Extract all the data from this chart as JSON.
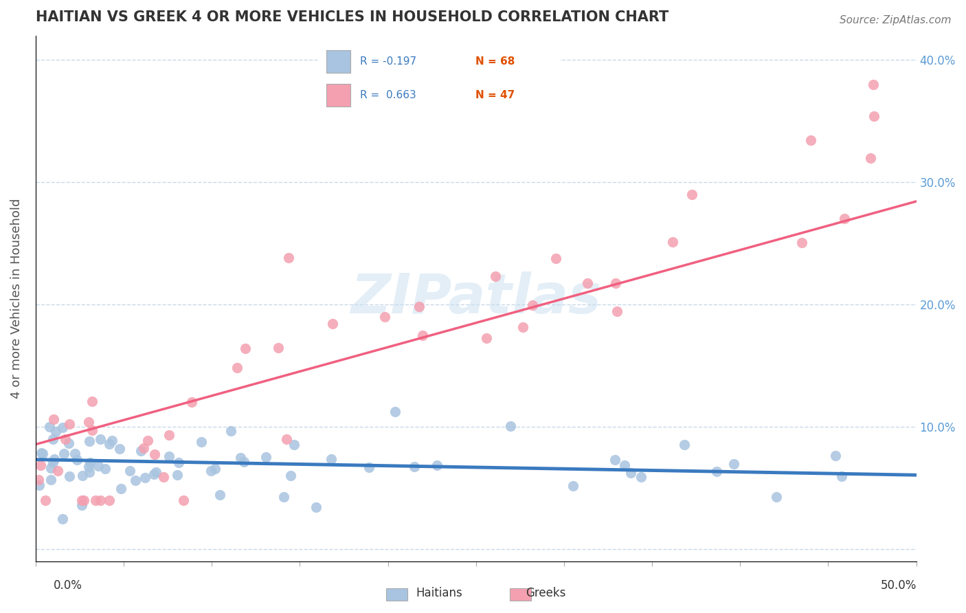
{
  "title": "HAITIAN VS GREEK 4 OR MORE VEHICLES IN HOUSEHOLD CORRELATION CHART",
  "source": "Source: ZipAtlas.com",
  "ylabel": "4 or more Vehicles in Household",
  "haitians_R": -0.197,
  "haitians_N": 68,
  "greeks_R": 0.663,
  "greeks_N": 47,
  "xlim": [
    0.0,
    0.5
  ],
  "ylim": [
    -0.01,
    0.42
  ],
  "haitians_color": "#a8c4e0",
  "greeks_color": "#f4a0b0",
  "haitians_line_color": "#3a7abf",
  "greeks_line_color": "#f06080",
  "watermark": "ZIPatlas",
  "background_color": "#ffffff",
  "grid_color": "#c8d8e8",
  "legend_R_color": "#3a7abf",
  "legend_N_color": "#e05000"
}
